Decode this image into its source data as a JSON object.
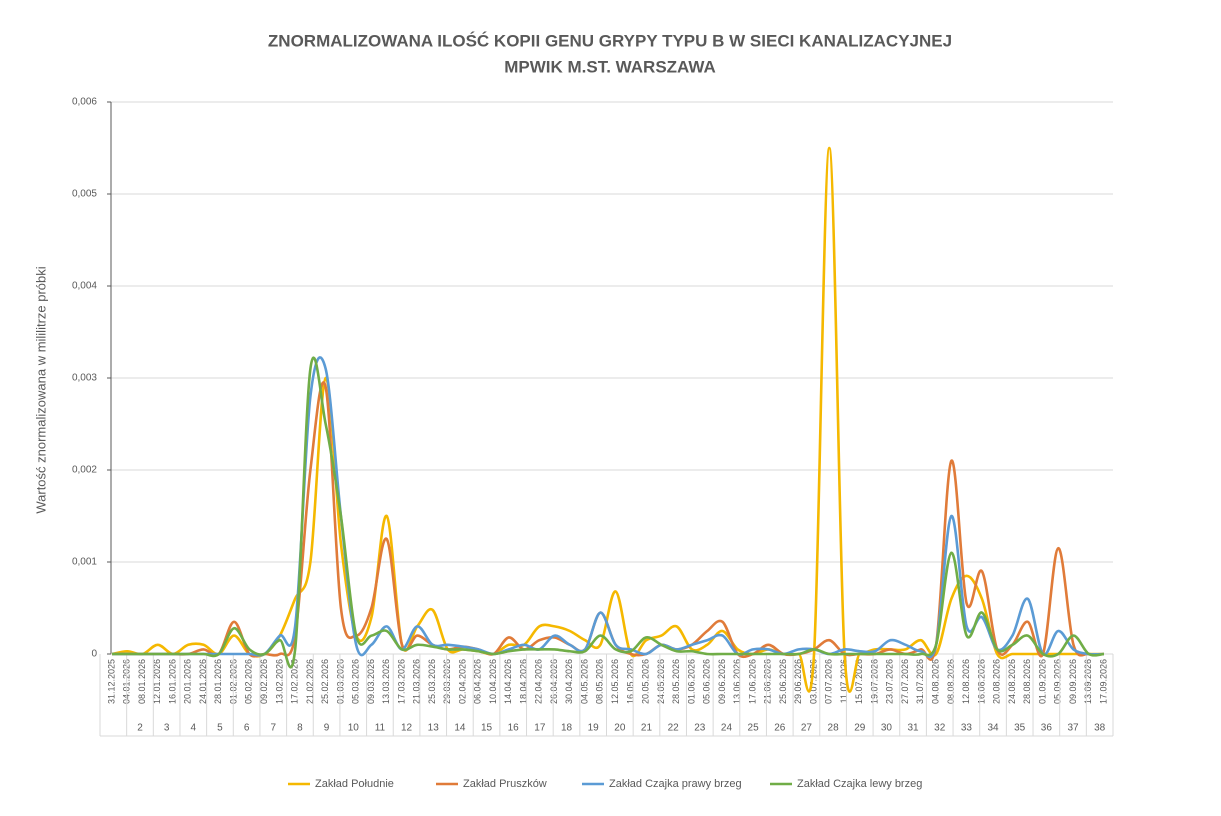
{
  "chart_data": {
    "type": "line",
    "title": [
      "ZNORMALIZOWANA ILOŚĆ KOPII GENU GRYPY TYPU B W SIECI KANALIZACYJNEJ",
      "MPWIK M.ST. WARSZAWA"
    ],
    "y_label": "Wartość znormalizowana  w mililitrze próbki",
    "categories": [
      "31.12.2025",
      "04.01.2026",
      "08.01.2026",
      "12.01.2026",
      "16.01.2026",
      "20.01.2026",
      "24.01.2026",
      "28.01.2026",
      "01.02.2026",
      "05.02.2026",
      "09.02.2026",
      "13.02.2026",
      "17.02.2026",
      "21.02.2026",
      "25.02.2026",
      "01.03.2026",
      "05.03.2026",
      "09.03.2026",
      "13.03.2026",
      "17.03.2026",
      "21.03.2026",
      "25.03.2026",
      "29.03.2026",
      "02.04.2026",
      "06.04.2026",
      "10.04.2026",
      "14.04.2026",
      "18.04.2026",
      "22.04.2026",
      "26.04.2026",
      "30.04.2026",
      "04.05.2026",
      "08.05.2026",
      "12.05.2026",
      "16.05.2026",
      "20.05.2026",
      "24.05.2026",
      "28.05.2026",
      "01.06.2026",
      "05.06.2026",
      "09.06.2026",
      "13.06.2026",
      "17.06.2026",
      "21.06.2026",
      "25.06.2026",
      "29.06.2026",
      "03.07.2026",
      "07.07.2026",
      "11.07.2026",
      "15.07.2026",
      "19.07.2026",
      "23.07.2026",
      "27.07.2026",
      "31.07.2026",
      "04.08.2026",
      "08.08.2026",
      "12.08.2026",
      "16.08.2026",
      "20.08.2026",
      "24.08.2026",
      "28.08.2026",
      "01.09.2026",
      "05.09.2026",
      "09.09.2026",
      "13.09.2026",
      "17.09.2026"
    ],
    "weeks": [
      null,
      2,
      3,
      4,
      5,
      6,
      7,
      8,
      9,
      10,
      11,
      12,
      13,
      14,
      15,
      16,
      17,
      18,
      19,
      20,
      21,
      22,
      23,
      24,
      25,
      26,
      27,
      28,
      29,
      30,
      31,
      32,
      33,
      34,
      35,
      36,
      37,
      38
    ],
    "ylim": [
      0,
      0.006
    ],
    "yticks": [
      0,
      {
        "value": 0.001,
        "label": "0,001"
      },
      {
        "value": 0.002,
        "label": "0,002"
      },
      {
        "value": 0.003,
        "label": "0,003"
      },
      {
        "value": 0.004,
        "label": "0,004"
      },
      {
        "value": 0.005,
        "label": "0,005"
      },
      {
        "value": 0.006,
        "label": "0,006"
      }
    ],
    "grid": true,
    "legend": "bottom",
    "series": [
      {
        "name": "Zakład Południe",
        "color": "#f5b800",
        "values": [
          0,
          3e-05,
          0,
          0.0001,
          0,
          0.0001,
          0.0001,
          0,
          0.0002,
          0,
          0,
          0.0002,
          0.0006,
          0.001,
          0.003,
          0.0012,
          0.0002,
          0.0004,
          0.0015,
          0.0001,
          0.0003,
          0.00048,
          5e-05,
          5e-05,
          3e-05,
          0,
          0.0001,
          0.0001,
          0.0003,
          0.0003,
          0.00025,
          0.00015,
          0.0001,
          0.00068,
          0,
          0.00015,
          0.0002,
          0.0003,
          5e-05,
          0.0001,
          0.00025,
          5e-05,
          0,
          5e-05,
          0,
          0,
          0,
          0.0055,
          0,
          0,
          5e-05,
          5e-05,
          5e-05,
          0.00015,
          0,
          0.0006,
          0.00085,
          0.0006,
          0,
          0,
          0,
          0,
          0,
          0,
          0,
          0
        ]
      },
      {
        "name": "Zakład Pruszków",
        "color": "#e07b39",
        "values": [
          0,
          0,
          0,
          0,
          0,
          0,
          5e-05,
          0,
          0.00035,
          0,
          0,
          0,
          0.0002,
          0.002,
          0.0029,
          0.0005,
          0.0002,
          0.0005,
          0.00125,
          0.0001,
          0.0002,
          0.0001,
          5e-05,
          8e-05,
          5e-05,
          0,
          0.00018,
          5e-05,
          0.00015,
          0.00018,
          0.0001,
          5e-05,
          0.00045,
          0.0001,
          0,
          0,
          0.0001,
          5e-05,
          0.0001,
          0.00025,
          0.00035,
          0,
          0,
          0.0001,
          0,
          0,
          5e-05,
          0.00015,
          0,
          0,
          0,
          5e-05,
          0,
          5e-05,
          0.0001,
          0.0021,
          0.00055,
          0.0009,
          5e-05,
          0.0001,
          0.00035,
          0,
          0.00115,
          0.0001,
          0,
          0
        ]
      },
      {
        "name": "Zakład Czajka prawy brzeg",
        "color": "#5b9bd5",
        "values": [
          0,
          0,
          0,
          0,
          0,
          0,
          0,
          0,
          0,
          0,
          0,
          0.0002,
          0.0003,
          0.0028,
          0.0031,
          0.0015,
          0.0001,
          0.0001,
          0.0003,
          5e-05,
          0.0003,
          0.0001,
          0.0001,
          8e-05,
          5e-05,
          0,
          5e-05,
          0.0001,
          5e-05,
          0.0002,
          0.0001,
          5e-05,
          0.00045,
          0.0001,
          5e-05,
          0,
          0.0001,
          5e-05,
          0.0001,
          0.00015,
          0.0002,
          0,
          5e-05,
          5e-05,
          0,
          5e-05,
          5e-05,
          0,
          5e-05,
          3e-05,
          3e-05,
          0.00015,
          0.0001,
          3e-05,
          0.0001,
          0.0015,
          0.0003,
          0.0004,
          5e-05,
          0.0002,
          0.0006,
          0,
          0.00025,
          5e-05,
          0,
          0
        ]
      },
      {
        "name": "Zakład Czajka lewy brzeg",
        "color": "#70ad47",
        "values": [
          0,
          0,
          0,
          0,
          0,
          0,
          0,
          0,
          0.00028,
          5e-05,
          0,
          0.00015,
          5e-05,
          0.0031,
          0.0025,
          0.0015,
          0.0002,
          0.0002,
          0.00025,
          5e-05,
          0.0001,
          8e-05,
          5e-05,
          5e-05,
          3e-05,
          0,
          3e-05,
          5e-05,
          5e-05,
          5e-05,
          3e-05,
          3e-05,
          0.0002,
          5e-05,
          3e-05,
          0.00018,
          0.0001,
          3e-05,
          3e-05,
          0,
          0,
          0,
          0,
          0,
          0,
          0,
          5e-05,
          0,
          0,
          0,
          0,
          0,
          0,
          0,
          0.0001,
          0.0011,
          0.0002,
          0.00045,
          5e-05,
          0.0001,
          0.0002,
          0,
          0,
          0.0002,
          0,
          0
        ]
      }
    ]
  }
}
